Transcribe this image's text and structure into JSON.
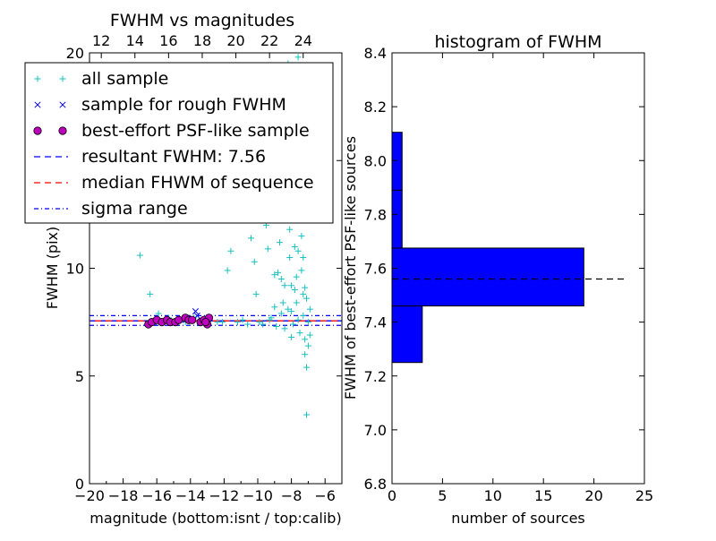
{
  "chart_data": [
    {
      "type": "scatter",
      "title": "FWHM vs magnitudes",
      "xlabel": "magnitude (bottom:isnt / top:calib)",
      "ylabel": "FWHM (pix)",
      "xlim": [
        -20,
        -5
      ],
      "ylim": [
        0,
        20
      ],
      "x_ticks": [
        "−20",
        "−18",
        "−16",
        "−14",
        "−12",
        "−10",
        "−8",
        "−6"
      ],
      "x_tick_values": [
        -20,
        -18,
        -16,
        -14,
        -12,
        -10,
        -8,
        -6
      ],
      "y_ticks": [
        "0",
        "5",
        "10",
        "15",
        "20"
      ],
      "y_tick_values": [
        0,
        5,
        10,
        15,
        20
      ],
      "top_axis_ticks": [
        "12",
        "14",
        "16",
        "18",
        "20",
        "22",
        "24"
      ],
      "top_axis_values": [
        12,
        14,
        16,
        18,
        20,
        22,
        24
      ],
      "top_axis_offset": 31.3,
      "grid": false,
      "legend_position": "upper-left",
      "legend": [
        {
          "label": "all sample",
          "marker": "plus",
          "color": "#17bfbf"
        },
        {
          "label": "sample for rough FWHM",
          "marker": "x",
          "color": "#0000ff"
        },
        {
          "label": "best-effort PSF-like sample",
          "marker": "circle",
          "color": "#bf00bf"
        },
        {
          "label": "resultant FWHM: 7.56",
          "style": "dashed",
          "color": "#0000ff"
        },
        {
          "label": "median FHWM of sequence",
          "style": "dashed",
          "color": "#ff0000"
        },
        {
          "label": "sigma range",
          "style": "dashdot",
          "color": "#0000ff"
        }
      ],
      "hlines": {
        "resultant": 7.56,
        "median": 7.56,
        "sigma_low": 7.35,
        "sigma_high": 7.8
      },
      "series": [
        {
          "name": "all sample",
          "marker": "plus",
          "color": "#17bfbf",
          "points": [
            [
              -17.0,
              10.6
            ],
            [
              -16.4,
              8.8
            ],
            [
              -15.9,
              7.9
            ],
            [
              -15.3,
              7.7
            ],
            [
              -14.8,
              7.6
            ],
            [
              -14.3,
              7.5
            ],
            [
              -13.8,
              7.7
            ],
            [
              -13.3,
              7.5
            ],
            [
              -12.9,
              7.6
            ],
            [
              -12.4,
              7.5
            ],
            [
              -12.1,
              7.5
            ],
            [
              -11.8,
              9.9
            ],
            [
              -11.6,
              10.8
            ],
            [
              -11.2,
              7.5
            ],
            [
              -10.9,
              7.6
            ],
            [
              -10.6,
              7.4
            ],
            [
              -10.4,
              11.4
            ],
            [
              -10.2,
              10.3
            ],
            [
              -10.1,
              8.8
            ],
            [
              -9.9,
              7.5
            ],
            [
              -9.7,
              7.4
            ],
            [
              -9.5,
              12.0
            ],
            [
              -9.4,
              10.9
            ],
            [
              -9.2,
              7.7
            ],
            [
              -9.0,
              8.2
            ],
            [
              -8.9,
              7.3
            ],
            [
              -8.8,
              12.5
            ],
            [
              -8.7,
              11.2
            ],
            [
              -8.6,
              9.5
            ],
            [
              -8.5,
              8.4
            ],
            [
              -8.4,
              7.2
            ],
            [
              -8.3,
              13.5
            ],
            [
              -8.2,
              12.6
            ],
            [
              -8.1,
              11.8
            ],
            [
              -8.1,
              10.5
            ],
            [
              -8.0,
              9.2
            ],
            [
              -8.0,
              8.0
            ],
            [
              -7.9,
              7.4
            ],
            [
              -7.9,
              14.6
            ],
            [
              -7.8,
              12.9
            ],
            [
              -7.8,
              11.0
            ],
            [
              -7.7,
              9.6
            ],
            [
              -7.7,
              8.4
            ],
            [
              -7.6,
              7.6
            ],
            [
              -7.6,
              19.8
            ],
            [
              -7.5,
              16.5
            ],
            [
              -7.5,
              13.8
            ],
            [
              -7.4,
              11.5
            ],
            [
              -7.4,
              9.9
            ],
            [
              -7.3,
              8.8
            ],
            [
              -7.3,
              7.8
            ],
            [
              -7.2,
              6.7
            ],
            [
              -7.2,
              6.0
            ],
            [
              -7.1,
              5.4
            ],
            [
              -7.0,
              7.5
            ],
            [
              -7.0,
              6.4
            ],
            [
              -6.9,
              8.1
            ],
            [
              -6.9,
              6.9
            ],
            [
              -7.1,
              3.2
            ],
            [
              -7.3,
              10.5
            ],
            [
              -7.4,
              12.3
            ],
            [
              -7.6,
              10.8
            ],
            [
              -7.8,
              9.0
            ],
            [
              -8.2,
              8.1
            ],
            [
              -8.6,
              7.9
            ],
            [
              -9.0,
              9.7
            ],
            [
              -9.3,
              7.6
            ],
            [
              -7.2,
              9.1
            ],
            [
              -7.5,
              7.0
            ],
            [
              -8.0,
              6.8
            ],
            [
              -8.4,
              9.2
            ],
            [
              -7.7,
              17.8
            ],
            [
              -8.2,
              19.5
            ],
            [
              -7.1,
              8.6
            ],
            [
              -7.6,
              14.9
            ],
            [
              -8.8,
              9.8
            ]
          ]
        },
        {
          "name": "sample for rough FWHM",
          "marker": "x",
          "color": "#0000ff",
          "points": [
            [
              -13.7,
              8.0
            ],
            [
              -13.6,
              7.8
            ],
            [
              -14.3,
              7.6
            ],
            [
              -15.7,
              7.5
            ],
            [
              -16.2,
              7.5
            ],
            [
              -13.0,
              7.6
            ]
          ]
        },
        {
          "name": "best-effort PSF-like sample",
          "marker": "circle",
          "color": "#bf00bf",
          "points": [
            [
              -16.5,
              7.4
            ],
            [
              -16.3,
              7.5
            ],
            [
              -16.0,
              7.6
            ],
            [
              -15.7,
              7.5
            ],
            [
              -15.4,
              7.6
            ],
            [
              -15.2,
              7.5
            ],
            [
              -14.9,
              7.5
            ],
            [
              -14.7,
              7.6
            ],
            [
              -14.3,
              7.7
            ],
            [
              -14.1,
              7.6
            ],
            [
              -13.9,
              7.6
            ],
            [
              -13.4,
              7.5
            ],
            [
              -13.2,
              7.6
            ],
            [
              -13.0,
              7.4
            ],
            [
              -12.9,
              7.7
            ],
            [
              -13.1,
              7.5
            ]
          ]
        }
      ]
    },
    {
      "type": "bar",
      "orientation": "horizontal",
      "title": "histogram of FWHM",
      "xlabel": "number of sources",
      "ylabel": "FWHM of best-effort PSF-like sources",
      "xlim": [
        0,
        25
      ],
      "ylim": [
        6.8,
        8.4
      ],
      "x_ticks": [
        "0",
        "5",
        "10",
        "15",
        "20",
        "25"
      ],
      "x_tick_values": [
        0,
        5,
        10,
        15,
        20,
        25
      ],
      "y_ticks": [
        "6.8",
        "7.0",
        "7.2",
        "7.4",
        "7.6",
        "7.8",
        "8.0",
        "8.2",
        "8.4"
      ],
      "y_tick_values": [
        6.8,
        7.0,
        7.2,
        7.4,
        7.6,
        7.8,
        8.0,
        8.2,
        8.4
      ],
      "grid": false,
      "bar_color": "#0000ff",
      "bins": [
        {
          "low": 7.25,
          "high": 7.46,
          "count": 3
        },
        {
          "low": 7.46,
          "high": 7.675,
          "count": 19
        },
        {
          "low": 7.675,
          "high": 7.89,
          "count": 1
        },
        {
          "low": 7.89,
          "high": 8.105,
          "count": 1
        }
      ],
      "hline": {
        "value": 7.56,
        "xmax": 23,
        "style": "dashed",
        "color": "#000000"
      }
    }
  ]
}
